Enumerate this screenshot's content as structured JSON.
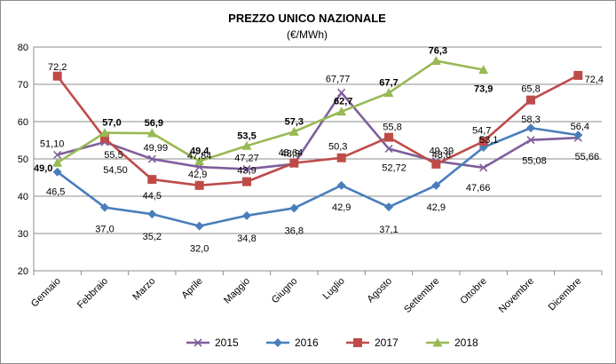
{
  "chart_data": {
    "type": "line",
    "title": "PREZZO UNICO NAZIONALE",
    "subtitle": "(€/MWh)",
    "xlabel": "",
    "ylabel": "",
    "ylim": [
      20,
      80
    ],
    "yticks": [
      "20",
      "30",
      "40",
      "50",
      "60",
      "70",
      "80"
    ],
    "grid": true,
    "legend": "bottom",
    "categories": [
      "Gennaio",
      "Febbraio",
      "Marzo",
      "Aprile",
      "Maggio",
      "Giugno",
      "Luglio",
      "Agosto",
      "Settembre",
      "Ottobre",
      "Novembre",
      "Dicembre"
    ],
    "series": [
      {
        "name": "2015",
        "color": "#7f5f9b",
        "marker": "x",
        "values": [
          51.1,
          54.5,
          49.99,
          47.84,
          47.27,
          48.64,
          67.77,
          52.72,
          49.39,
          47.66,
          55.08,
          55.66
        ],
        "labels": [
          "51,10",
          "54,50",
          "49,99",
          "47,84",
          "47,27",
          "48,64",
          "67,77",
          "52,72",
          "49,39",
          "47,66",
          "55,08",
          "55,66"
        ],
        "label_bold": false
      },
      {
        "name": "2016",
        "color": "#4a7ebb",
        "marker": "diamond",
        "values": [
          46.5,
          37.0,
          35.2,
          32.0,
          34.8,
          36.8,
          42.9,
          37.1,
          42.9,
          53.1,
          58.3,
          56.4
        ],
        "labels": [
          "46,5",
          "37,0",
          "35,2",
          "32,0",
          "34,8",
          "36,8",
          "42,9",
          "37,1",
          "42,9",
          "53,1",
          "58,3",
          "56,4"
        ],
        "label_bold": false
      },
      {
        "name": "2017",
        "color": "#be4b48",
        "marker": "square",
        "values": [
          72.2,
          55.5,
          44.5,
          42.9,
          43.9,
          48.9,
          50.3,
          55.8,
          48.6,
          54.7,
          65.8,
          72.4
        ],
        "labels": [
          "72,2",
          "55,5",
          "44,5",
          "42,9",
          "43,9",
          "48,9",
          "50,3",
          "55,8",
          "48,6",
          "54,7",
          "65,8",
          "72,4"
        ],
        "label_bold": false
      },
      {
        "name": "2018",
        "color": "#98b954",
        "marker": "triangle",
        "values": [
          49.0,
          57.0,
          56.9,
          49.4,
          53.5,
          57.3,
          62.7,
          67.7,
          76.3,
          73.9,
          null,
          null
        ],
        "labels": [
          "49,0",
          "57,0",
          "56,9",
          "49,4",
          "53,5",
          "57,3",
          "62,7",
          "67,7",
          "76,3",
          "73,9",
          "",
          ""
        ],
        "label_bold": true
      }
    ]
  }
}
